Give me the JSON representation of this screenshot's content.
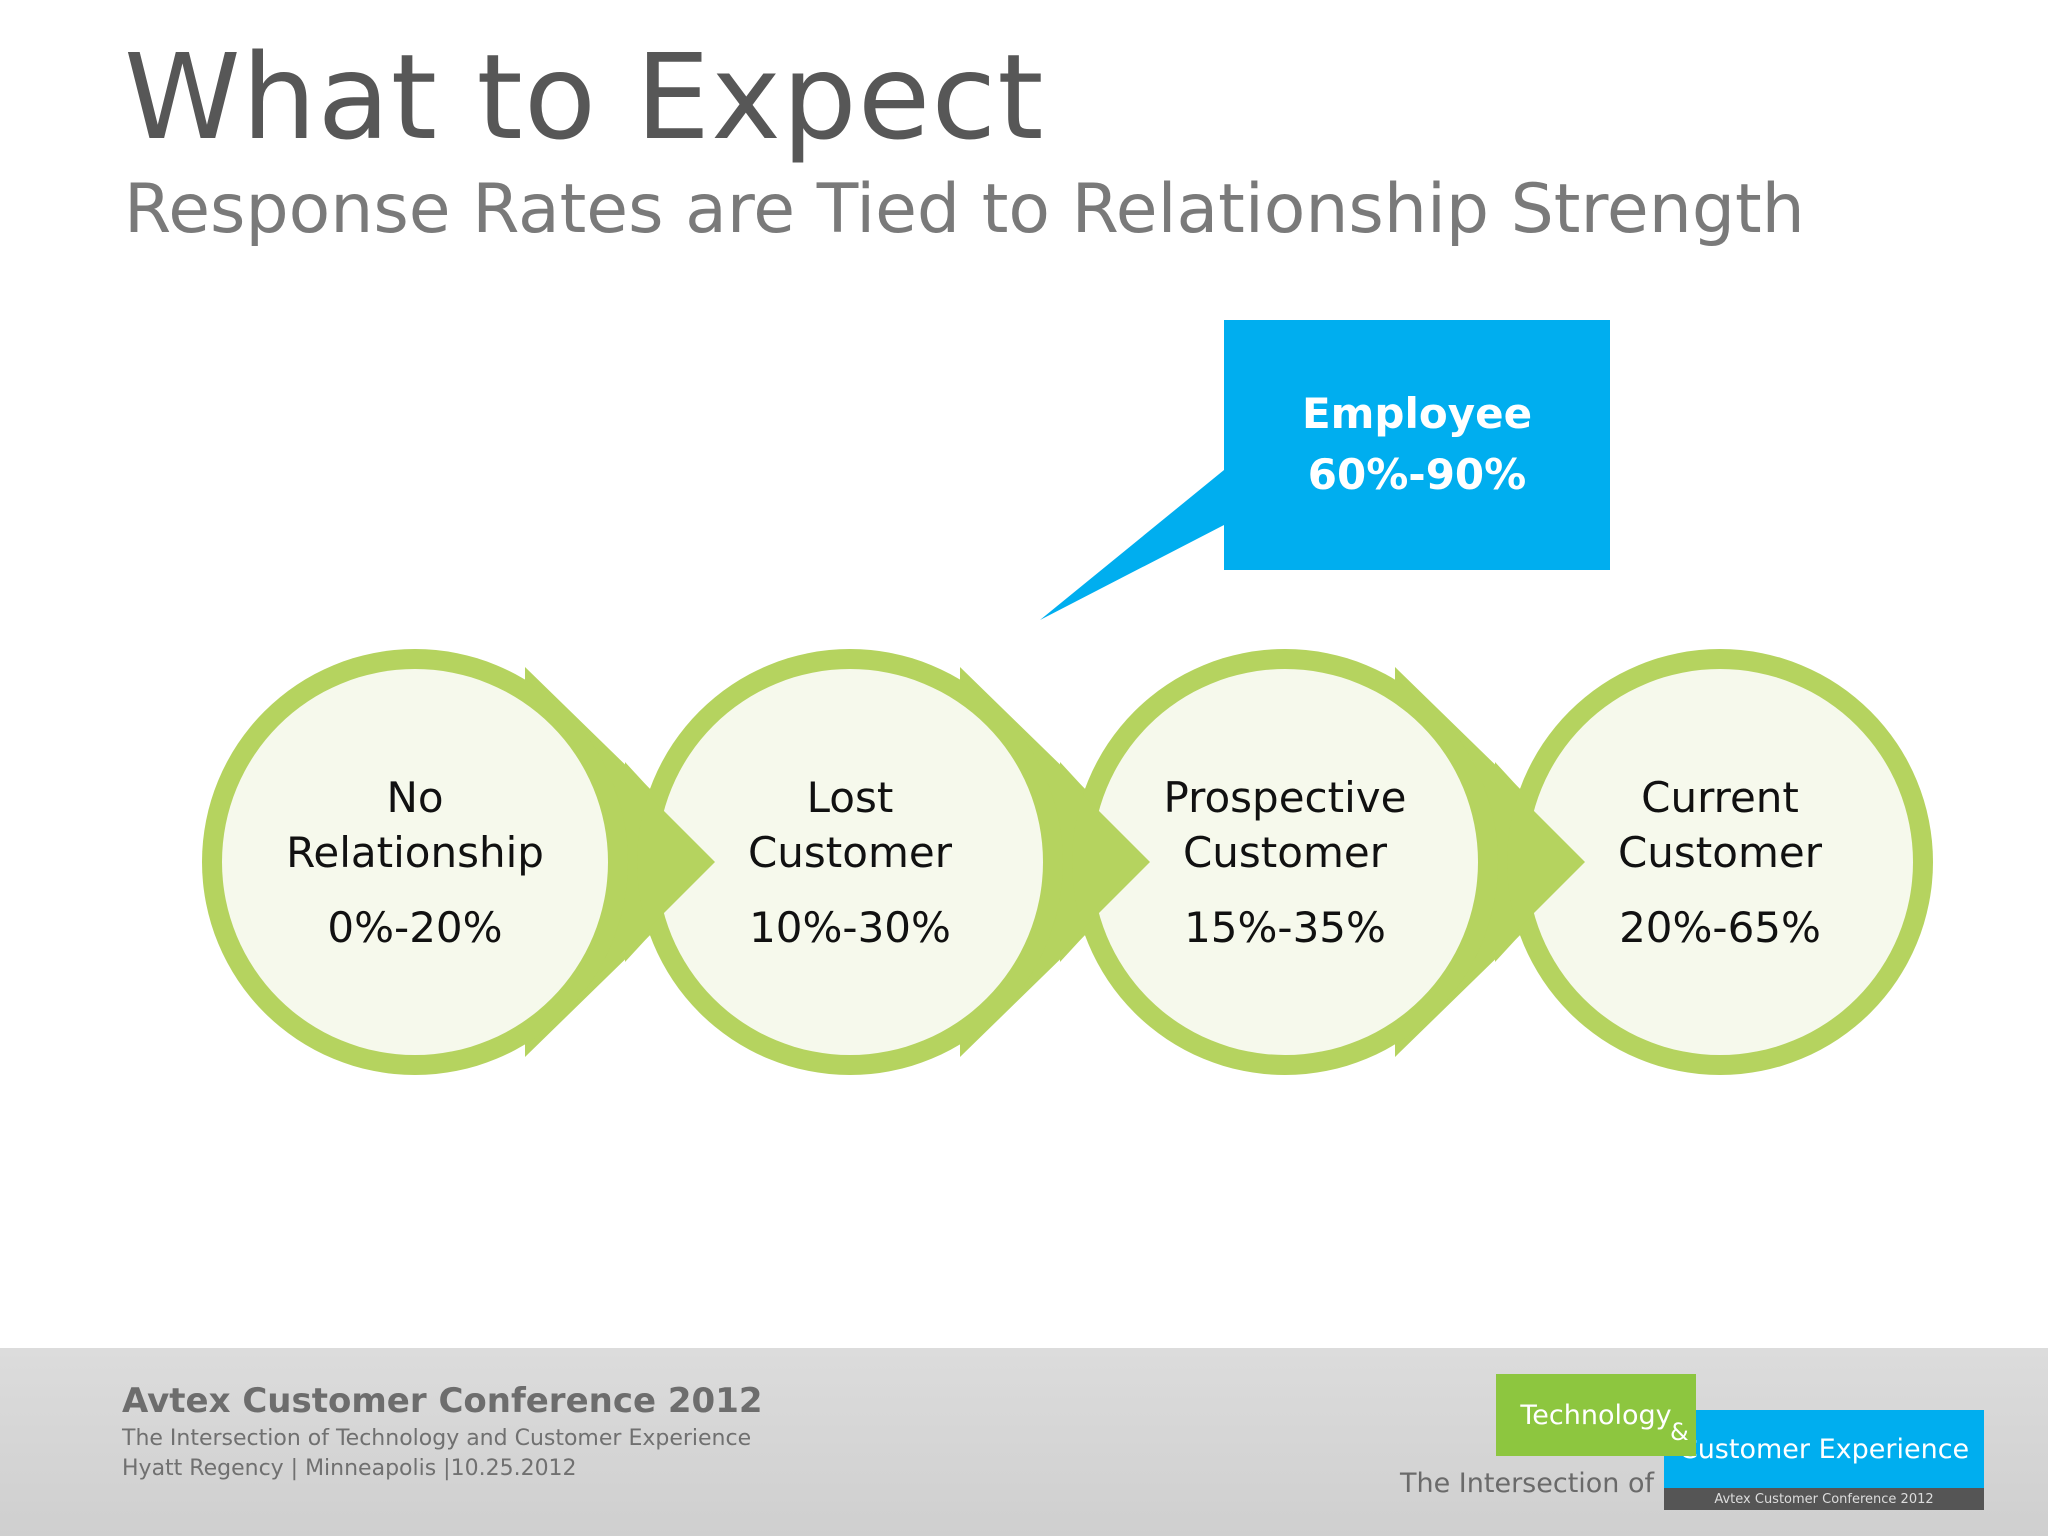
{
  "slide": {
    "title": "What to Expect",
    "subtitle": "Response Rates are Tied to Relationship Strength"
  },
  "callout": {
    "label": "Employee",
    "range": "60%-90%"
  },
  "stages": [
    {
      "label_line1": "No",
      "label_line2": "Relationship",
      "range": "0%-20%"
    },
    {
      "label_line1": "Lost",
      "label_line2": "Customer",
      "range": "10%-30%"
    },
    {
      "label_line1": "Prospective",
      "label_line2": "Customer",
      "range": "15%-35%"
    },
    {
      "label_line1": "Current",
      "label_line2": "Customer",
      "range": "20%-65%"
    }
  ],
  "colors": {
    "ring": "#b5d35f",
    "circle_fill": "#f6f9ec",
    "callout": "#00aeef",
    "title": "#575757"
  },
  "footer": {
    "conference": "Avtex Customer Conference 2012",
    "tagline": "The Intersection of Technology and Customer Experience",
    "venue": "Hyatt Regency | Minneapolis |10.25.2012",
    "logo": {
      "intersection": "The Intersection of",
      "technology": "Technology",
      "ampersand": "&",
      "customer_experience": "Customer Experience",
      "strip": "Avtex Customer Conference 2012"
    }
  }
}
